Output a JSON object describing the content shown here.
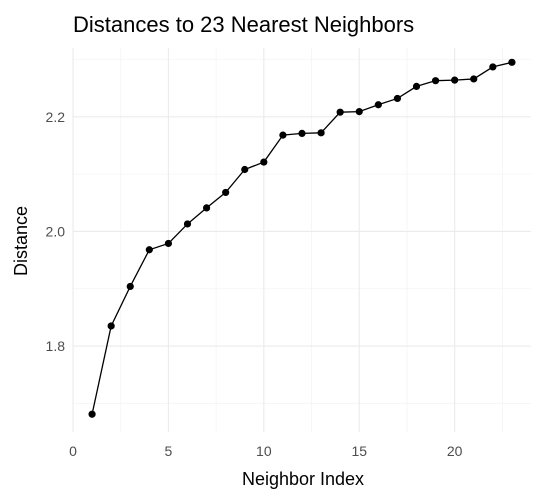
{
  "chart_data": {
    "type": "line",
    "title": "Distances to 23 Nearest Neighbors",
    "xlabel": "Neighbor Index",
    "ylabel": "Distance",
    "xlim": [
      0,
      24
    ],
    "ylim": [
      1.65,
      2.32
    ],
    "x_ticks": [
      0,
      5,
      10,
      15,
      20
    ],
    "x_tick_labels": [
      "0",
      "5",
      "10",
      "15",
      "20"
    ],
    "y_ticks": [
      1.8,
      2.0,
      2.2
    ],
    "y_tick_labels": [
      "1.8",
      "2.0",
      "2.2"
    ],
    "grid": true,
    "series": [
      {
        "x": [
          1,
          2,
          3,
          4,
          5,
          6,
          7,
          8,
          9,
          10,
          11,
          12,
          13,
          14,
          15,
          16,
          17,
          18,
          19,
          20,
          21,
          22,
          23
        ],
        "values": [
          1.681,
          1.835,
          1.904,
          1.968,
          1.979,
          2.013,
          2.041,
          2.068,
          2.108,
          2.121,
          2.168,
          2.171,
          2.172,
          2.208,
          2.209,
          2.221,
          2.232,
          2.253,
          2.263,
          2.264,
          2.266,
          2.287,
          2.295
        ]
      }
    ]
  }
}
